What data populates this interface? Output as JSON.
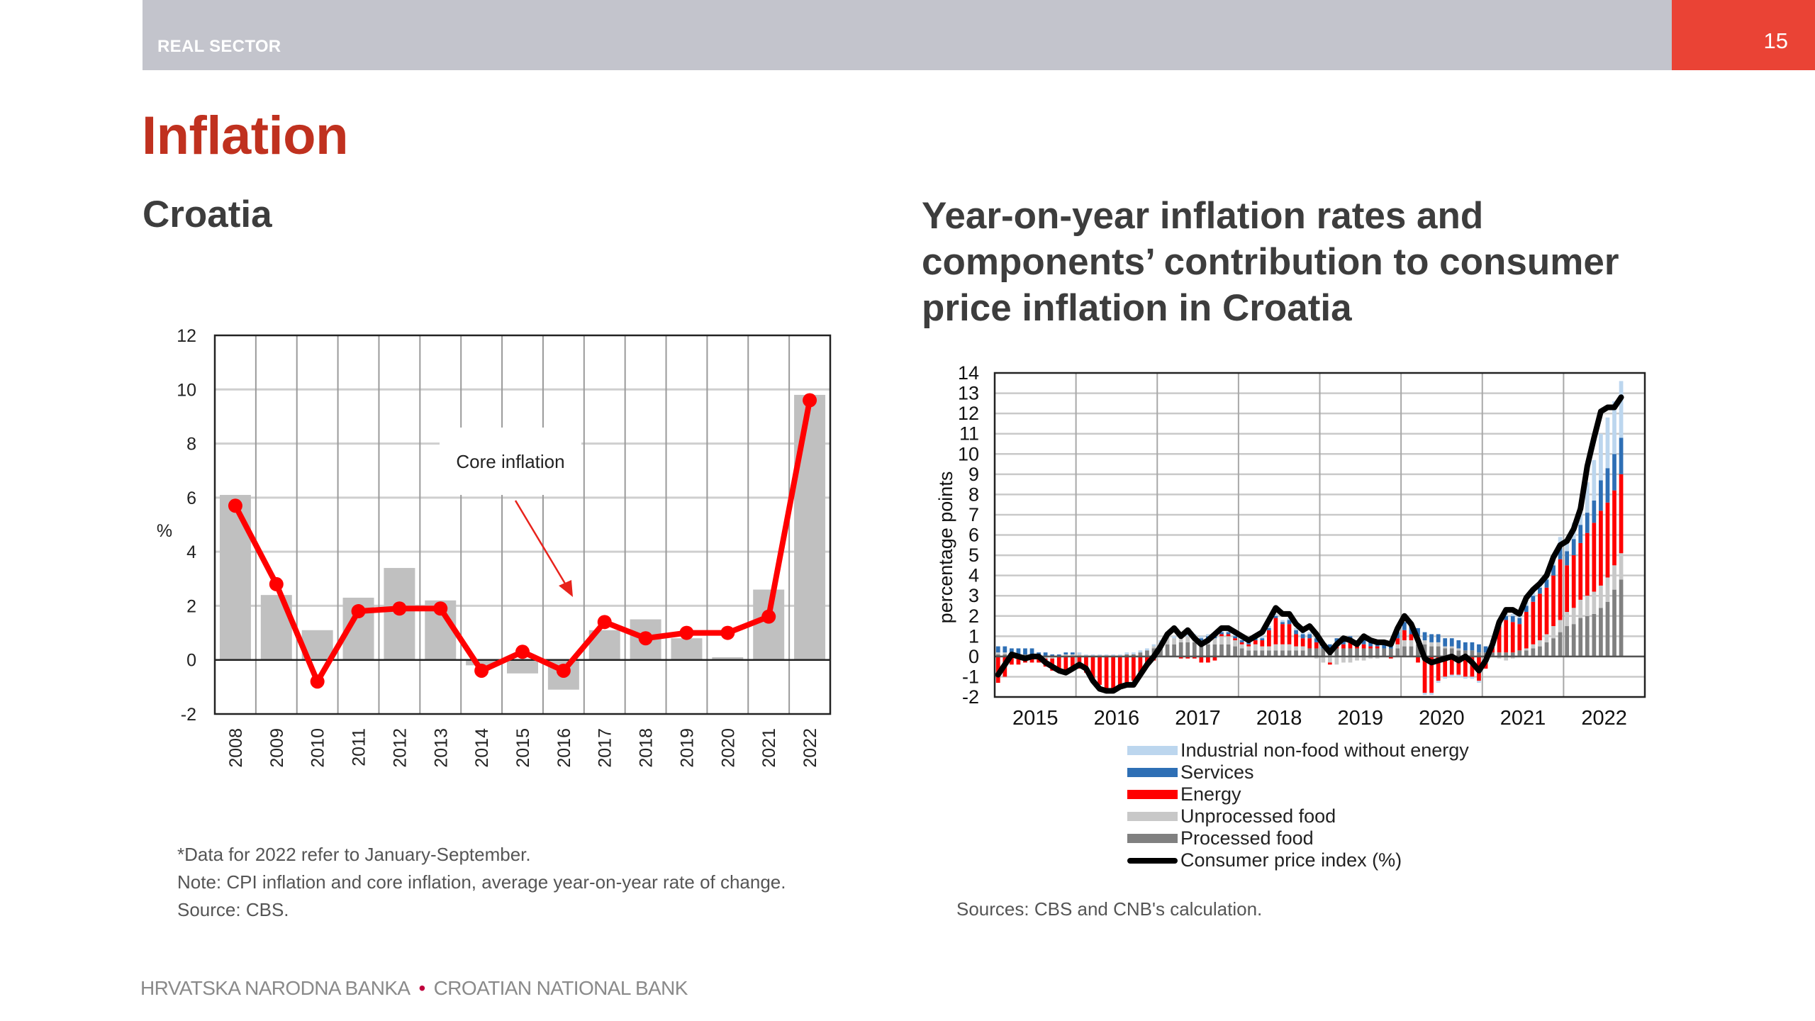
{
  "header": {
    "section": "REAL SECTOR",
    "page_number": "15",
    "accent_color": "#ea4335",
    "bar_color": "#c3c4cc"
  },
  "title": "Inflation",
  "left_panel": {
    "subtitle": "Croatia",
    "notes": [
      "*Data for 2022 refer to January-September.",
      "Note: CPI inflation and core inflation, average year-on-year rate of change.",
      "Source: CBS."
    ]
  },
  "right_panel": {
    "subtitle": "Year-on-year inflation rates and components’ contribution to consumer price inflation in Croatia",
    "source": "Sources: CBS and CNB's calculation."
  },
  "footer": {
    "left": "HRVATSKA NARODNA BANKA",
    "separator": "•",
    "right": "CROATIAN NATIONAL BANK"
  },
  "chart_data": [
    {
      "type": "bar",
      "title": "Croatia",
      "xlabel": "",
      "ylabel": "%",
      "ylim": [
        -2,
        12
      ],
      "yticks": [
        -2,
        0,
        2,
        4,
        6,
        8,
        10,
        12
      ],
      "grid": true,
      "categories": [
        "2008",
        "2009",
        "2010",
        "2011",
        "2012",
        "2013",
        "2014",
        "2015",
        "2016",
        "2017",
        "2018",
        "2019",
        "2020",
        "2021",
        "2022"
      ],
      "series": [
        {
          "name": "CPI inflation",
          "kind": "bar",
          "color": "#c0c0c0",
          "values": [
            6.1,
            2.4,
            1.1,
            2.3,
            3.4,
            2.2,
            -0.2,
            -0.5,
            -1.1,
            1.1,
            1.5,
            0.8,
            0.1,
            2.6,
            9.8
          ]
        },
        {
          "name": "Core inflation",
          "kind": "line-markers",
          "color": "#ff0000",
          "values": [
            5.7,
            2.8,
            -0.8,
            1.8,
            1.9,
            1.9,
            -0.4,
            0.3,
            -0.4,
            1.4,
            0.8,
            1.0,
            1.0,
            1.6,
            9.6
          ]
        }
      ],
      "annotations": [
        {
          "text": "Core inflation",
          "points_to": "core inflation line"
        }
      ]
    },
    {
      "type": "bar",
      "stacked": true,
      "title": "Year-on-year inflation rates and components’ contribution to consumer price inflation in Croatia",
      "xlabel": "",
      "ylabel": "percentage points",
      "ylim": [
        -2,
        14
      ],
      "yticks": [
        -2,
        -1,
        0,
        1,
        2,
        3,
        4,
        5,
        6,
        7,
        8,
        9,
        10,
        11,
        12,
        13,
        14
      ],
      "x_tick_labels": [
        "2015",
        "2016",
        "2017",
        "2018",
        "2019",
        "2020",
        "2021",
        "2022"
      ],
      "x_range": [
        "2015-01",
        "2022-12"
      ],
      "frequency": "monthly",
      "start": "2015-01",
      "grid": true,
      "legend_position": "bottom",
      "series": [
        {
          "name": "Processed food",
          "kind": "bar",
          "color": "#808080",
          "values": [
            0.1,
            0.1,
            0.1,
            0.1,
            0.1,
            0.1,
            0.0,
            0.0,
            0.0,
            0.0,
            0.0,
            0.0,
            0.0,
            0.0,
            0.0,
            0.0,
            0.0,
            0.0,
            0.0,
            0.1,
            0.1,
            0.2,
            0.3,
            0.4,
            0.5,
            0.6,
            0.6,
            0.7,
            0.7,
            0.7,
            0.6,
            0.6,
            0.6,
            0.6,
            0.6,
            0.5,
            0.4,
            0.3,
            0.3,
            0.3,
            0.3,
            0.3,
            0.3,
            0.3,
            0.3,
            0.3,
            0.4,
            0.4,
            0.4,
            0.4,
            0.4,
            0.4,
            0.4,
            0.4,
            0.4,
            0.4,
            0.4,
            0.4,
            0.4,
            0.4,
            0.5,
            0.5,
            0.6,
            0.6,
            0.5,
            0.5,
            0.4,
            0.4,
            0.3,
            0.3,
            0.3,
            0.2,
            0.2,
            0.2,
            0.2,
            0.2,
            0.2,
            0.3,
            0.3,
            0.4,
            0.5,
            0.7,
            0.9,
            1.2,
            1.5,
            1.6,
            1.9,
            2.0,
            2.1,
            2.4,
            2.7,
            3.3,
            3.8
          ]
        },
        {
          "name": "Unprocessed food",
          "kind": "bar",
          "color": "#c8c8c8",
          "values": [
            0.1,
            0.1,
            0.0,
            0.0,
            0.0,
            0.0,
            -0.1,
            -0.1,
            -0.1,
            0.0,
            0.1,
            0.1,
            0.1,
            0.0,
            0.0,
            0.0,
            0.0,
            0.0,
            0.0,
            0.0,
            0.0,
            0.0,
            0.0,
            0.1,
            0.2,
            0.4,
            0.3,
            0.3,
            0.3,
            0.2,
            0.2,
            0.3,
            0.3,
            0.4,
            0.4,
            0.3,
            0.2,
            0.2,
            0.3,
            0.2,
            0.2,
            0.3,
            0.3,
            0.3,
            0.2,
            0.2,
            0.0,
            -0.1,
            -0.3,
            -0.3,
            -0.4,
            -0.3,
            -0.3,
            -0.2,
            -0.2,
            -0.1,
            -0.1,
            0.0,
            0.0,
            0.2,
            0.3,
            0.3,
            0.4,
            0.2,
            0.2,
            0.2,
            0.1,
            0.1,
            0.1,
            0.0,
            0.0,
            0.0,
            0.0,
            0.0,
            -0.1,
            -0.2,
            -0.1,
            0.0,
            0.1,
            0.2,
            0.3,
            0.4,
            0.6,
            0.6,
            0.7,
            0.8,
            0.9,
            1.0,
            1.1,
            1.1,
            1.2,
            1.2,
            1.3
          ]
        },
        {
          "name": "Energy",
          "kind": "bar",
          "color": "#ff0000",
          "values": [
            -1.3,
            -1.0,
            -0.4,
            -0.4,
            -0.3,
            -0.3,
            -0.2,
            -0.4,
            -0.6,
            -0.7,
            -0.8,
            -0.7,
            -0.6,
            -0.8,
            -1.2,
            -1.4,
            -1.6,
            -1.6,
            -1.5,
            -1.3,
            -1.2,
            -0.9,
            -0.5,
            -0.2,
            0.0,
            0.0,
            0.0,
            -0.1,
            -0.1,
            -0.1,
            -0.3,
            -0.3,
            -0.2,
            0.1,
            0.1,
            0.1,
            0.1,
            0.1,
            0.2,
            0.3,
            0.8,
            1.3,
            1.0,
            1.0,
            0.6,
            0.4,
            0.5,
            0.3,
            0.0,
            -0.1,
            0.2,
            0.2,
            0.3,
            0.1,
            0.2,
            0.1,
            0.1,
            0.0,
            -0.1,
            0.3,
            0.5,
            0.3,
            -0.3,
            -1.8,
            -1.8,
            -1.2,
            -1.0,
            -0.9,
            -0.9,
            -1.0,
            -1.0,
            -1.2,
            -0.6,
            0.5,
            1.3,
            1.6,
            1.5,
            1.3,
            1.8,
            2.1,
            2.3,
            2.3,
            2.5,
            3.0,
            2.3,
            2.6,
            2.8,
            3.1,
            3.4,
            3.7,
            3.7,
            3.7,
            3.9
          ]
        },
        {
          "name": "Services",
          "kind": "bar",
          "color": "#2e6fb5",
          "values": [
            0.3,
            0.3,
            0.3,
            0.3,
            0.3,
            0.3,
            0.2,
            0.2,
            0.1,
            0.1,
            0.1,
            0.1,
            0.0,
            0.0,
            0.0,
            0.0,
            0.0,
            0.0,
            0.0,
            0.0,
            0.0,
            0.0,
            0.0,
            0.0,
            0.0,
            0.0,
            0.0,
            0.0,
            0.0,
            0.1,
            0.1,
            0.1,
            0.1,
            0.1,
            0.1,
            0.1,
            0.1,
            0.1,
            0.1,
            0.1,
            0.1,
            0.1,
            0.1,
            0.2,
            0.2,
            0.2,
            0.2,
            0.2,
            0.2,
            0.2,
            0.3,
            0.3,
            0.3,
            0.3,
            0.3,
            0.3,
            0.2,
            0.2,
            0.2,
            0.3,
            0.4,
            0.4,
            0.4,
            0.4,
            0.4,
            0.4,
            0.4,
            0.4,
            0.4,
            0.4,
            0.4,
            0.4,
            0.3,
            0.1,
            0.2,
            0.2,
            0.3,
            0.3,
            0.3,
            0.3,
            0.3,
            0.4,
            0.5,
            0.6,
            0.7,
            0.8,
            0.9,
            1.0,
            1.1,
            1.5,
            1.7,
            1.8,
            1.8
          ]
        },
        {
          "name": "Industrial non-food without energy",
          "kind": "bar",
          "color": "#bcd6ee",
          "values": [
            0.0,
            0.0,
            0.0,
            0.0,
            0.0,
            0.0,
            0.0,
            0.0,
            0.0,
            0.0,
            0.0,
            0.0,
            0.1,
            0.1,
            0.1,
            0.1,
            0.1,
            0.1,
            0.1,
            0.1,
            0.1,
            0.1,
            0.1,
            0.1,
            0.1,
            0.1,
            0.1,
            0.1,
            0.1,
            0.1,
            0.1,
            0.1,
            0.1,
            0.1,
            0.1,
            0.1,
            0.1,
            0.1,
            0.1,
            0.1,
            0.1,
            0.1,
            0.1,
            0.1,
            0.1,
            0.1,
            0.1,
            0.1,
            0.0,
            0.0,
            0.0,
            0.0,
            0.0,
            0.0,
            0.0,
            0.0,
            0.0,
            0.0,
            0.0,
            0.0,
            0.0,
            0.0,
            0.0,
            -0.1,
            -0.1,
            -0.1,
            -0.1,
            -0.1,
            -0.1,
            -0.1,
            -0.1,
            -0.1,
            0.0,
            0.0,
            0.1,
            0.1,
            0.1,
            0.1,
            0.2,
            0.2,
            0.2,
            0.3,
            0.4,
            0.5,
            0.6,
            0.8,
            1.0,
            1.5,
            2.0,
            2.3,
            2.5,
            2.6,
            2.8
          ]
        },
        {
          "name": "Consumer price index (%)",
          "kind": "line",
          "color": "#000000",
          "values": [
            -0.9,
            -0.4,
            0.1,
            0.0,
            -0.1,
            0.0,
            0.0,
            -0.3,
            -0.5,
            -0.7,
            -0.8,
            -0.6,
            -0.4,
            -0.6,
            -1.2,
            -1.6,
            -1.7,
            -1.7,
            -1.5,
            -1.4,
            -1.4,
            -0.9,
            -0.4,
            0.0,
            0.5,
            1.1,
            1.4,
            1.0,
            1.3,
            0.9,
            0.6,
            0.8,
            1.1,
            1.4,
            1.4,
            1.2,
            1.0,
            0.8,
            1.0,
            1.2,
            1.8,
            2.4,
            2.1,
            2.1,
            1.6,
            1.3,
            1.5,
            1.1,
            0.6,
            0.2,
            0.6,
            0.9,
            0.8,
            0.6,
            1.0,
            0.8,
            0.7,
            0.7,
            0.6,
            1.4,
            2.0,
            1.6,
            0.8,
            -0.1,
            -0.3,
            -0.2,
            -0.1,
            0.0,
            -0.2,
            0.0,
            -0.3,
            -0.7,
            -0.2,
            0.6,
            1.7,
            2.3,
            2.3,
            2.1,
            2.9,
            3.3,
            3.6,
            4.0,
            4.9,
            5.5,
            5.7,
            6.3,
            7.3,
            9.4,
            10.8,
            12.1,
            12.3,
            12.3,
            12.8
          ]
        }
      ]
    }
  ]
}
